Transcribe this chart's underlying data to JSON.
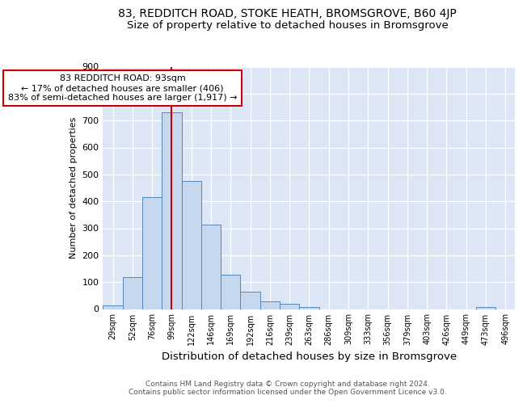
{
  "title1": "83, REDDITCH ROAD, STOKE HEATH, BROMSGROVE, B60 4JP",
  "title2": "Size of property relative to detached houses in Bromsgrove",
  "xlabel": "Distribution of detached houses by size in Bromsgrove",
  "ylabel": "Number of detached properties",
  "bar_values": [
    15,
    120,
    415,
    730,
    475,
    315,
    127,
    65,
    28,
    20,
    8,
    0,
    0,
    0,
    0,
    0,
    0,
    0,
    0,
    7,
    0
  ],
  "bar_labels": [
    "29sqm",
    "52sqm",
    "76sqm",
    "99sqm",
    "122sqm",
    "146sqm",
    "169sqm",
    "192sqm",
    "216sqm",
    "239sqm",
    "263sqm",
    "286sqm",
    "309sqm",
    "333sqm",
    "356sqm",
    "379sqm",
    "403sqm",
    "426sqm",
    "449sqm",
    "473sqm",
    "496sqm"
  ],
  "bar_color": "#c5d8ee",
  "bar_edge_color": "#5588bb",
  "annotation_text": "83 REDDITCH ROAD: 93sqm\n← 17% of detached houses are smaller (406)\n83% of semi-detached houses are larger (1,917) →",
  "annotation_box_color": "#ffffff",
  "annotation_box_edge_color": "#cc0000",
  "vline_color": "#cc0000",
  "vline_x": 3.0,
  "ylim": [
    0,
    900
  ],
  "yticks": [
    0,
    100,
    200,
    300,
    400,
    500,
    600,
    700,
    800,
    900
  ],
  "footnote": "Contains HM Land Registry data © Crown copyright and database right 2024.\nContains public sector information licensed under the Open Government Licence v3.0.",
  "plot_bg_color": "#dce6f5",
  "title1_fontsize": 10,
  "title2_fontsize": 9.5,
  "xlabel_fontsize": 9.5,
  "ylabel_fontsize": 8,
  "footnote_fontsize": 6.5
}
